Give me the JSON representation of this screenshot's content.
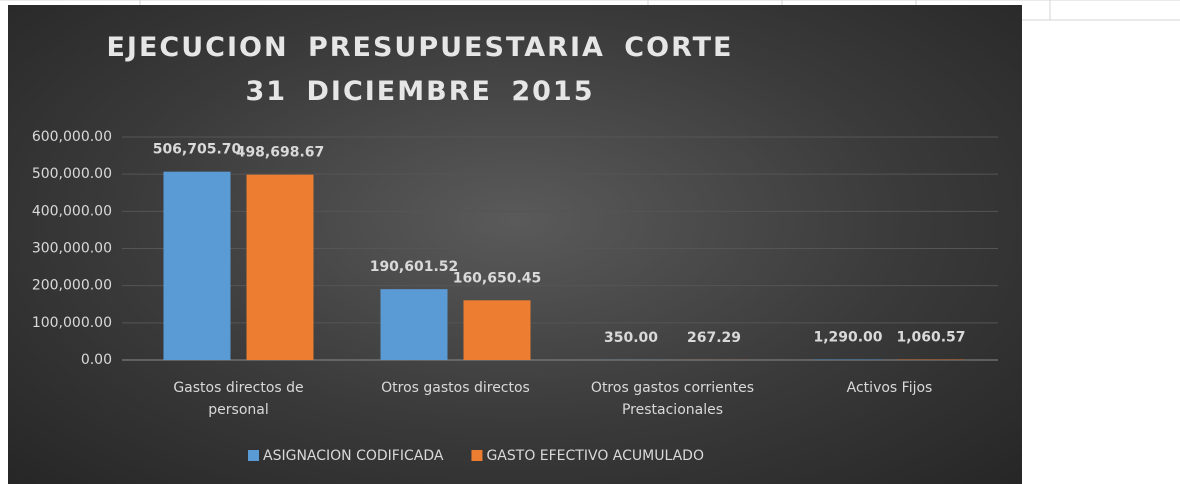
{
  "chart_data": {
    "type": "bar",
    "title": "EJECUCION PRESUPUESTARIA CORTE 31 DICIEMBRE 2015",
    "categories": [
      "Gastos directos de personal",
      "Otros gastos directos",
      "Otros gastos corrientes Prestacionales",
      "Activos Fijos"
    ],
    "series": [
      {
        "name": "ASIGNACION CODIFICADA",
        "color": "#5b9bd5",
        "values": [
          506705.7,
          190601.52,
          350.0,
          1290.0
        ],
        "value_labels": [
          "506,705.70",
          "190,601.52",
          "350.00",
          "1,290.00"
        ]
      },
      {
        "name": "GASTO EFECTIVO ACUMULADO",
        "color": "#ed7d31",
        "values": [
          498698.67,
          160650.45,
          267.29,
          1060.57
        ],
        "value_labels": [
          "498,698.67",
          "160,650.45",
          "267.29",
          "1,060.57"
        ]
      }
    ],
    "ylim": [
      0,
      600000
    ],
    "yticks": [
      {
        "value": 0,
        "label": "0.00"
      },
      {
        "value": 100000,
        "label": "100,000.00"
      },
      {
        "value": 200000,
        "label": "200,000.00"
      },
      {
        "value": 300000,
        "label": "300,000.00"
      },
      {
        "value": 400000,
        "label": "400,000.00"
      },
      {
        "value": 500000,
        "label": "500,000.00"
      },
      {
        "value": 600000,
        "label": "600,000.00"
      }
    ],
    "grid": true,
    "legend": "bottom"
  }
}
